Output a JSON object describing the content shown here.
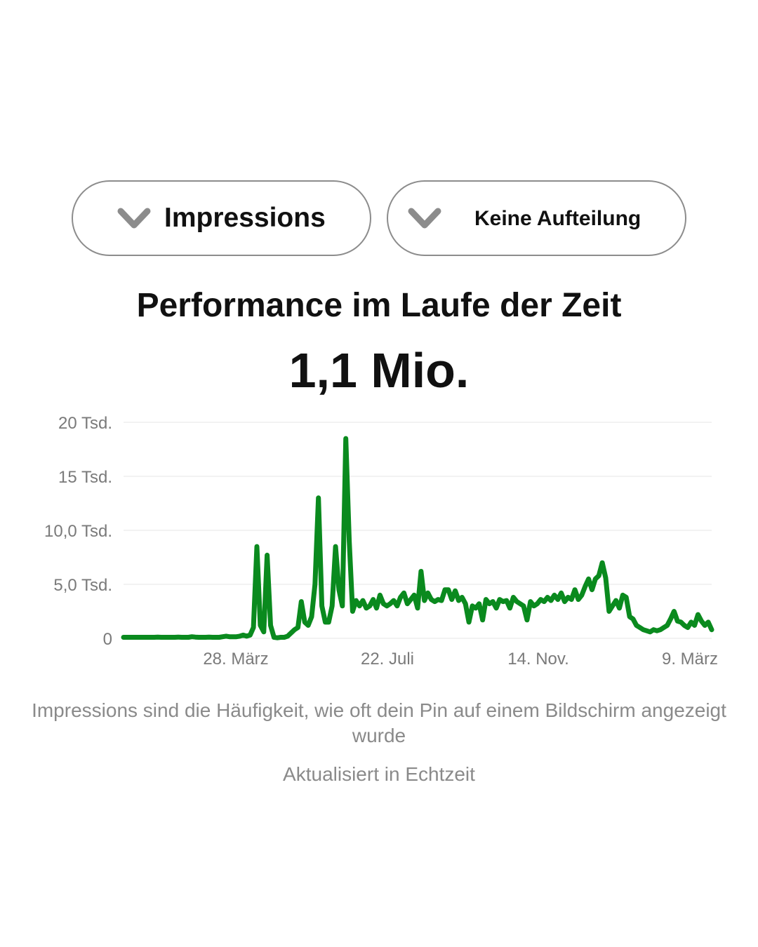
{
  "metric_selector": {
    "label": "Impressions",
    "icon": "chevron-down-icon"
  },
  "breakdown_selector": {
    "label": "Keine Aufteilung",
    "icon": "chevron-down-icon"
  },
  "title": "Performance im Laufe der Zeit",
  "total": "1,1 Mio.",
  "description": "Impressions sind die Häufigkeit, wie oft dein Pin auf einem Bildschirm angezeigt wurde",
  "updated": "Aktualisiert in Echtzeit",
  "colors": {
    "line": "#0a8a1e",
    "grid": "#eeeeee",
    "axis_text": "#7a7a7a"
  },
  "chart_data": {
    "type": "line",
    "ylim": [
      0,
      20000
    ],
    "yticks": [
      0,
      5000,
      10000,
      15000,
      20000
    ],
    "ytick_labels": [
      "0",
      "5,0 Tsd.",
      "10,0 Tsd.",
      "15 Tsd.",
      "20 Tsd."
    ],
    "xticks": [
      "28. März",
      "22. Juli",
      "14. Nov.",
      "9. März"
    ],
    "grid": true,
    "series": [
      {
        "values": [
          100,
          100,
          100,
          100,
          100,
          100,
          100,
          100,
          100,
          100,
          120,
          100,
          100,
          100,
          100,
          100,
          120,
          100,
          100,
          100,
          150,
          120,
          100,
          100,
          100,
          120,
          100,
          100,
          100,
          150,
          200,
          150,
          150,
          150,
          200,
          300,
          200,
          300,
          1000,
          8500,
          1200,
          600,
          7700,
          1200,
          100,
          50,
          100,
          100,
          200,
          500,
          800,
          1000,
          3400,
          1500,
          1200,
          2000,
          5000,
          13000,
          3000,
          1500,
          1500,
          3000,
          8500,
          4500,
          3000,
          18500,
          9000,
          2500,
          3500,
          3000,
          3500,
          2800,
          3000,
          3600,
          2800,
          4000,
          3200,
          3000,
          3200,
          3500,
          3000,
          3800,
          4200,
          3200,
          3600,
          4000,
          2800,
          6200,
          3500,
          4200,
          3600,
          3400,
          3600,
          3500,
          4500,
          4500,
          3600,
          4400,
          3500,
          3800,
          3200,
          1500,
          3000,
          2800,
          3200,
          1700,
          3600,
          3200,
          3400,
          2800,
          3600,
          3400,
          3500,
          2800,
          3800,
          3400,
          3200,
          3000,
          1700,
          3400,
          3000,
          3200,
          3600,
          3400,
          3800,
          3500,
          4000,
          3600,
          4200,
          3400,
          3800,
          3600,
          4500,
          3600,
          4000,
          4800,
          5500,
          4500,
          5500,
          5800,
          7000,
          5600,
          2500,
          3000,
          3500,
          2800,
          4000,
          3800,
          2000,
          1800,
          1200,
          1000,
          800,
          700,
          600,
          800,
          700,
          800,
          1000,
          1200,
          1800,
          2500,
          1600,
          1500,
          1200,
          1000,
          1500,
          1200,
          2200,
          1600,
          1200,
          1500,
          800
        ]
      }
    ]
  }
}
